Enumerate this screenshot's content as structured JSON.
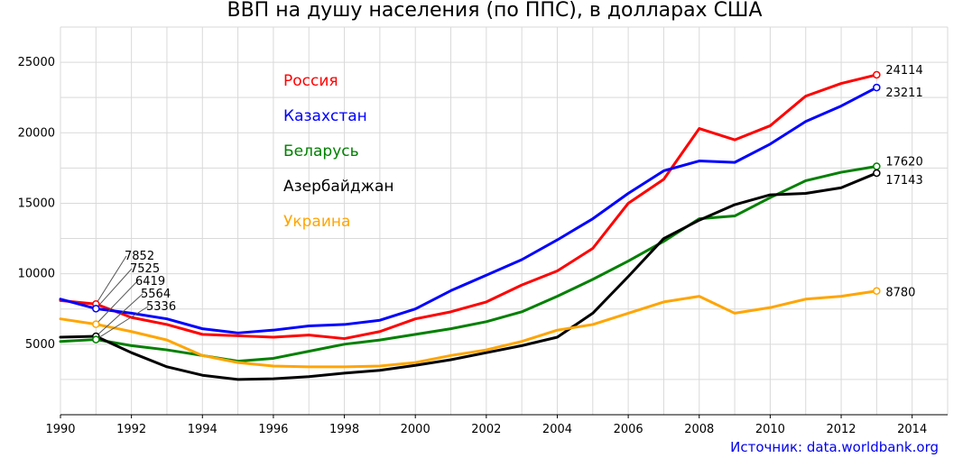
{
  "chart_data": {
    "type": "line",
    "title": "ВВП на душу населения (по ППС), в долларах США",
    "source": "Источник: data.worldbank.org",
    "source_color": "#0000ee",
    "xlim": [
      1990,
      2015
    ],
    "ylim": [
      0,
      27500
    ],
    "x_ticks": [
      1990,
      1992,
      1994,
      1996,
      1998,
      2000,
      2002,
      2004,
      2006,
      2008,
      2010,
      2012,
      2014
    ],
    "y_ticks": [
      5000,
      10000,
      15000,
      20000,
      25000
    ],
    "grid": true,
    "legend_position": "top-left-center",
    "x": [
      1990,
      1991,
      1992,
      1993,
      1994,
      1995,
      1996,
      1997,
      1998,
      1999,
      2000,
      2001,
      2002,
      2003,
      2004,
      2005,
      2006,
      2007,
      2008,
      2009,
      2010,
      2011,
      2012,
      2013
    ],
    "series": [
      {
        "name": "Россия",
        "color": "#ff0000",
        "values": [
          8100,
          7852,
          6900,
          6400,
          5700,
          5600,
          5500,
          5650,
          5400,
          5900,
          6800,
          7300,
          8000,
          9200,
          10200,
          11800,
          15000,
          16700,
          20300,
          19500,
          20500,
          22600,
          23500,
          24114
        ],
        "end_label": "24114",
        "start_label": "7852"
      },
      {
        "name": "Казахстан",
        "color": "#0000ff",
        "values": [
          8200,
          7525,
          7200,
          6800,
          6100,
          5800,
          6000,
          6300,
          6400,
          6700,
          7500,
          8800,
          9900,
          11000,
          12400,
          13900,
          15700,
          17300,
          18000,
          17900,
          19200,
          20800,
          21900,
          23211
        ],
        "end_label": "23211",
        "start_label": "7525"
      },
      {
        "name": "Беларусь",
        "color": "#008000",
        "values": [
          5200,
          5336,
          4900,
          4600,
          4200,
          3800,
          4000,
          4500,
          5000,
          5300,
          5700,
          6100,
          6600,
          7300,
          8400,
          9600,
          10900,
          12300,
          13900,
          14100,
          15400,
          16600,
          17200,
          17620
        ],
        "end_label": "17620",
        "start_label": "5336"
      },
      {
        "name": "Азербайджан",
        "color": "#000000",
        "values": [
          5500,
          5564,
          4400,
          3400,
          2800,
          2500,
          2550,
          2700,
          2950,
          3150,
          3500,
          3900,
          4400,
          4900,
          5500,
          7200,
          9800,
          12500,
          13800,
          14900,
          15600,
          15700,
          16100,
          17143
        ],
        "end_label": "17143",
        "start_label": "5564"
      },
      {
        "name": "Украина",
        "color": "#ffa500",
        "values": [
          6800,
          6419,
          5900,
          5300,
          4200,
          3700,
          3450,
          3400,
          3400,
          3450,
          3700,
          4200,
          4600,
          5200,
          6000,
          6400,
          7200,
          8000,
          8400,
          7200,
          7600,
          8200,
          8400,
          8780
        ],
        "end_label": "8780",
        "start_label": "6419"
      }
    ]
  }
}
